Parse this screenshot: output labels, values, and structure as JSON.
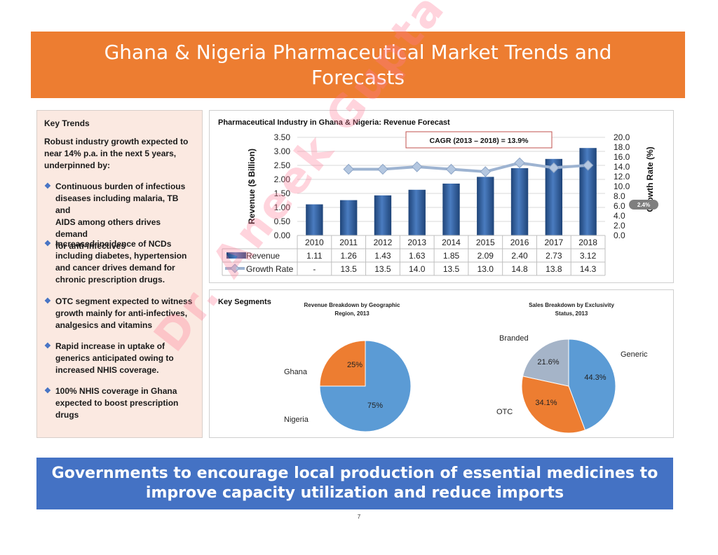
{
  "title": {
    "line1": "Ghana & Nigeria Pharmaceutical Market Trends and",
    "line2": "Forecasts"
  },
  "key_trends": {
    "heading": "Key Trends",
    "intro": [
      "Robust industry growth expected to",
      "near 14% p.a. in the next 5 years,",
      "underpinned by:"
    ],
    "bullets": [
      [
        "Continuous burden of infectious",
        "diseases including malaria, TB and",
        "AIDS among others drives demand",
        "for anti-infectives"
      ],
      [
        "Increased incidence of NCDs",
        "including diabetes, hypertension",
        "and cancer drives demand for",
        "chronic prescription drugs."
      ],
      [
        "OTC segment expected to witness",
        "growth mainly for anti-infectives,",
        "analgesics and vitamins"
      ],
      [
        "Rapid increase in uptake of",
        "generics anticipated owing to",
        "increased NHIS coverage."
      ],
      [
        "100% NHIS coverage in Ghana",
        "expected to boost prescription",
        "drugs"
      ]
    ]
  },
  "chart_data": [
    {
      "type": "bar",
      "title": "Pharmaceutical Industry in Ghana & Nigeria: Revenue Forecast",
      "categories": [
        "2010",
        "2011",
        "2012",
        "2013",
        "2014",
        "2015",
        "2016",
        "2017",
        "2018"
      ],
      "series": [
        {
          "name": "Revenue",
          "type": "bar",
          "axis": "left",
          "values": [
            1.11,
            1.26,
            1.43,
            1.63,
            1.85,
            2.09,
            2.4,
            2.73,
            3.12
          ],
          "labels": [
            "1.11",
            "1.26",
            "1.43",
            "1.63",
            "1.85",
            "2.09",
            "2.40",
            "2.73",
            "3.12"
          ]
        },
        {
          "name": "Growth Rate",
          "type": "line",
          "axis": "right",
          "values": [
            null,
            13.5,
            13.5,
            14.0,
            13.5,
            13.0,
            14.8,
            13.8,
            14.3
          ],
          "labels": [
            "-",
            "13.5",
            "13.5",
            "14.0",
            "13.5",
            "13.0",
            "14.8",
            "13.8",
            "14.3"
          ]
        }
      ],
      "ylabel": "Revenue ($ Billion)",
      "y2label": "Growth Rate (%)",
      "ylim": [
        0,
        3.5
      ],
      "y_ticks": [
        "0.00",
        "0.50",
        "1.00",
        "1.50",
        "2.00",
        "2.50",
        "3.00",
        "3.50"
      ],
      "y2lim": [
        0,
        20
      ],
      "y2_ticks": [
        "0.0",
        "2.0",
        "4.0",
        "6.0",
        "8.0",
        "10.0",
        "12.0",
        "14.0",
        "16.0",
        "18.0",
        "20.0"
      ],
      "annotation": "CAGR (2013 – 2018) = 13.9%",
      "side_badge": "2.4%",
      "grid": true,
      "legend": "data-table"
    },
    {
      "type": "pie",
      "title": [
        "Revenue Breakdown by Geographic",
        "Region, 2013"
      ],
      "labels": [
        "Nigeria",
        "Ghana"
      ],
      "values": [
        75,
        25
      ],
      "value_labels": [
        "75%",
        "25%"
      ],
      "colors": [
        "#5B9BD5",
        "#ED7D31"
      ]
    },
    {
      "type": "pie",
      "title": [
        "Sales Breakdown by Exclusivity",
        "Status, 2013"
      ],
      "labels": [
        "Generic",
        "OTC",
        "Branded"
      ],
      "values": [
        44.3,
        34.1,
        21.6
      ],
      "value_labels": [
        "44.3%",
        "34.1%",
        "21.6%"
      ],
      "colors": [
        "#5B9BD5",
        "#ED7D31",
        "#A5B4C8"
      ]
    }
  ],
  "segments_heading": "Key Segments",
  "bottom_banner": {
    "line1": "Governments to encourage local production of essential medicines to",
    "line2": "improve capacity utilization and reduce imports"
  },
  "page_number": "7",
  "watermark": "Dr. Aneek Gupta",
  "colors": {
    "title_bar": "#ED7D31",
    "banner": "#4472C4",
    "bar": "#2E5C9A",
    "line": "#9DB3D1"
  }
}
